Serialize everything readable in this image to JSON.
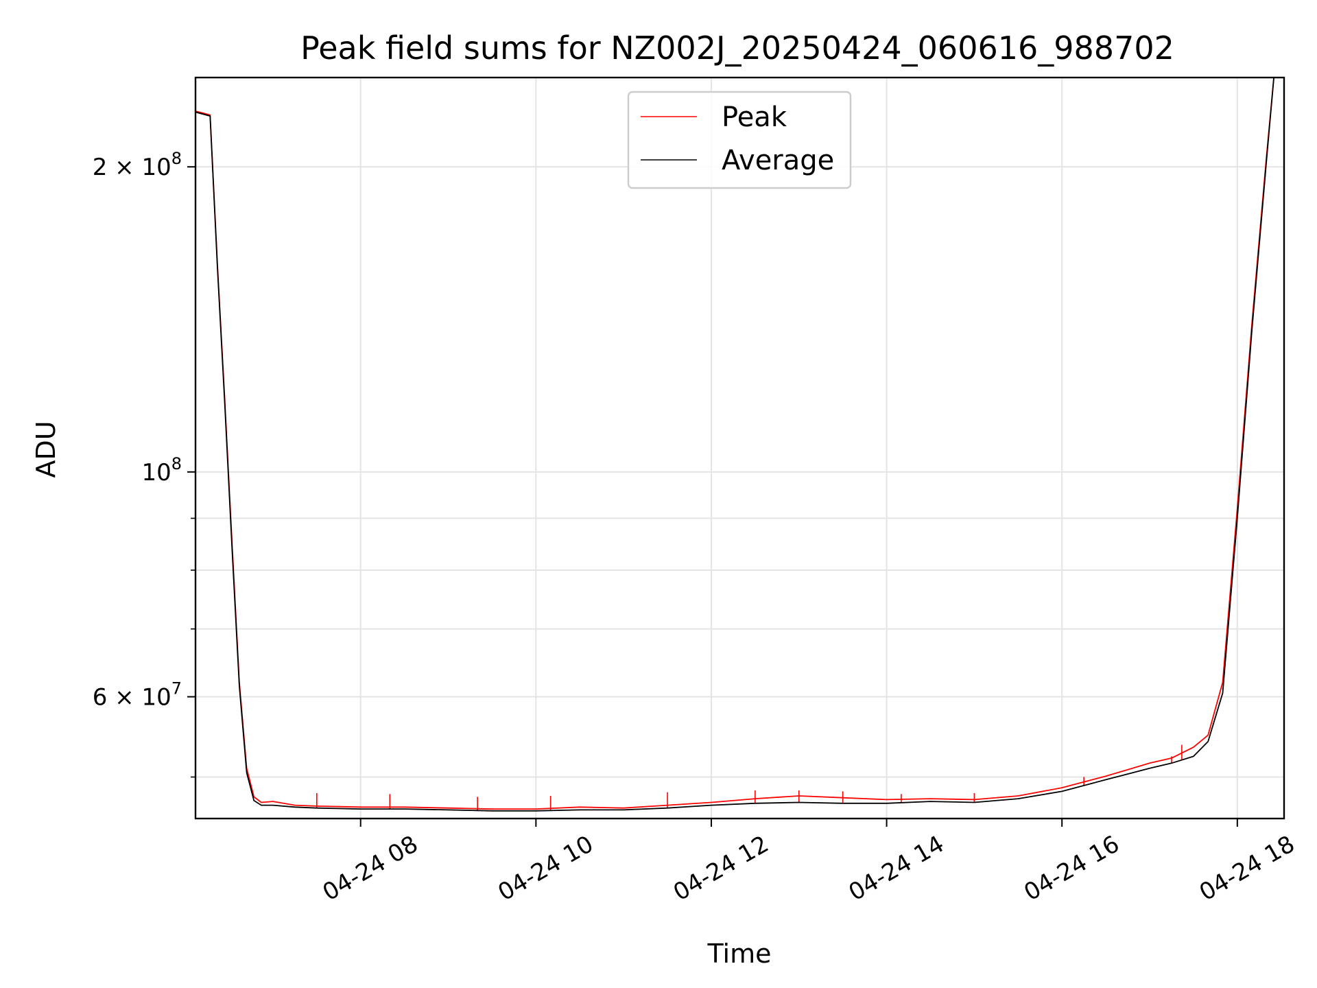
{
  "chart_data": {
    "type": "line",
    "title": "Peak field sums for NZ002J_20250424_060616_988702",
    "xlabel": "Time",
    "ylabel": "ADU",
    "yscale": "log",
    "xlim": [
      "2025-04-24 06:07",
      "2025-04-24 18:32"
    ],
    "ylim": [
      45500000,
      245000000
    ],
    "grid": true,
    "legend": "upper center",
    "x_ticks": [
      {
        "value": "2025-04-24 08:00",
        "label": "04-24 08"
      },
      {
        "value": "2025-04-24 10:00",
        "label": "04-24 10"
      },
      {
        "value": "2025-04-24 12:00",
        "label": "04-24 12"
      },
      {
        "value": "2025-04-24 14:00",
        "label": "04-24 14"
      },
      {
        "value": "2025-04-24 16:00",
        "label": "04-24 16"
      },
      {
        "value": "2025-04-24 18:00",
        "label": "04-24 18"
      }
    ],
    "y_ticks": [
      {
        "value": 200000000,
        "base": "2 × 10",
        "exp": "8"
      },
      {
        "value": 100000000,
        "base": "10",
        "exp": "8"
      },
      {
        "value": 60000000,
        "base": "6 × 10",
        "exp": "7"
      }
    ],
    "y_minor_ticks": [
      50000000,
      70000000,
      80000000,
      90000000
    ],
    "series": [
      {
        "name": "Peak",
        "color": "#ff0000",
        "x": [
          "2025-04-24 06:07",
          "2025-04-24 06:12",
          "2025-04-24 06:17",
          "2025-04-24 06:22",
          "2025-04-24 06:27",
          "2025-04-24 06:32",
          "2025-04-24 06:37",
          "2025-04-24 06:42",
          "2025-04-24 06:47",
          "2025-04-24 06:52",
          "2025-04-24 07:00",
          "2025-04-24 07:15",
          "2025-04-24 07:30",
          "2025-04-24 08:00",
          "2025-04-24 08:30",
          "2025-04-24 09:00",
          "2025-04-24 09:30",
          "2025-04-24 10:00",
          "2025-04-24 10:30",
          "2025-04-24 11:00",
          "2025-04-24 11:30",
          "2025-04-24 12:00",
          "2025-04-24 12:30",
          "2025-04-24 13:00",
          "2025-04-24 13:30",
          "2025-04-24 14:00",
          "2025-04-24 14:30",
          "2025-04-24 15:00",
          "2025-04-24 15:30",
          "2025-04-24 16:00",
          "2025-04-24 16:30",
          "2025-04-24 17:00",
          "2025-04-24 17:15",
          "2025-04-24 17:30",
          "2025-04-24 17:40",
          "2025-04-24 17:50",
          "2025-04-24 18:00",
          "2025-04-24 18:10",
          "2025-04-24 18:20",
          "2025-04-24 18:25"
        ],
        "values": [
          227000000,
          226000000,
          225000000,
          160000000,
          118000000,
          85000000,
          62000000,
          51000000,
          47800000,
          47200000,
          47300000,
          46900000,
          46800000,
          46700000,
          46700000,
          46600000,
          46500000,
          46500000,
          46700000,
          46600000,
          46900000,
          47200000,
          47600000,
          47900000,
          47700000,
          47500000,
          47600000,
          47500000,
          47900000,
          48800000,
          50100000,
          51600000,
          52200000,
          53500000,
          55000000,
          62000000,
          92000000,
          140000000,
          205000000,
          245000000
        ],
        "spikes": [
          {
            "x": "2025-04-24 07:30",
            "value": 48200000
          },
          {
            "x": "2025-04-24 08:20",
            "value": 48100000
          },
          {
            "x": "2025-04-24 09:20",
            "value": 47800000
          },
          {
            "x": "2025-04-24 10:10",
            "value": 47900000
          },
          {
            "x": "2025-04-24 11:30",
            "value": 48300000
          },
          {
            "x": "2025-04-24 12:30",
            "value": 48500000
          },
          {
            "x": "2025-04-24 13:00",
            "value": 48500000
          },
          {
            "x": "2025-04-24 13:30",
            "value": 48400000
          },
          {
            "x": "2025-04-24 14:10",
            "value": 48100000
          },
          {
            "x": "2025-04-24 15:00",
            "value": 48200000
          },
          {
            "x": "2025-04-24 16:15",
            "value": 50000000
          },
          {
            "x": "2025-04-24 17:15",
            "value": 52400000
          },
          {
            "x": "2025-04-24 17:22",
            "value": 53800000
          },
          {
            "x": "2025-04-24 17:44",
            "value": 56800000
          }
        ]
      },
      {
        "name": "Average",
        "color": "#000000",
        "x": [
          "2025-04-24 06:07",
          "2025-04-24 06:12",
          "2025-04-24 06:17",
          "2025-04-24 06:22",
          "2025-04-24 06:27",
          "2025-04-24 06:32",
          "2025-04-24 06:37",
          "2025-04-24 06:42",
          "2025-04-24 06:47",
          "2025-04-24 06:52",
          "2025-04-24 07:00",
          "2025-04-24 07:15",
          "2025-04-24 07:30",
          "2025-04-24 08:00",
          "2025-04-24 08:30",
          "2025-04-24 09:00",
          "2025-04-24 09:30",
          "2025-04-24 10:00",
          "2025-04-24 10:30",
          "2025-04-24 11:00",
          "2025-04-24 11:30",
          "2025-04-24 12:00",
          "2025-04-24 12:30",
          "2025-04-24 13:00",
          "2025-04-24 13:30",
          "2025-04-24 14:00",
          "2025-04-24 14:30",
          "2025-04-24 15:00",
          "2025-04-24 15:30",
          "2025-04-24 16:00",
          "2025-04-24 16:30",
          "2025-04-24 17:00",
          "2025-04-24 17:15",
          "2025-04-24 17:30",
          "2025-04-24 17:40",
          "2025-04-24 17:50",
          "2025-04-24 18:00",
          "2025-04-24 18:10",
          "2025-04-24 18:20",
          "2025-04-24 18:25"
        ],
        "values": [
          226500000,
          225500000,
          224500000,
          159000000,
          117000000,
          84000000,
          61500000,
          50500000,
          47400000,
          46900000,
          46900000,
          46700000,
          46600000,
          46500000,
          46500000,
          46400000,
          46300000,
          46300000,
          46400000,
          46400000,
          46600000,
          46900000,
          47100000,
          47200000,
          47100000,
          47100000,
          47300000,
          47200000,
          47600000,
          48400000,
          49700000,
          51000000,
          51600000,
          52400000,
          54200000,
          60500000,
          90000000,
          138000000,
          203000000,
          245000000
        ]
      }
    ]
  }
}
